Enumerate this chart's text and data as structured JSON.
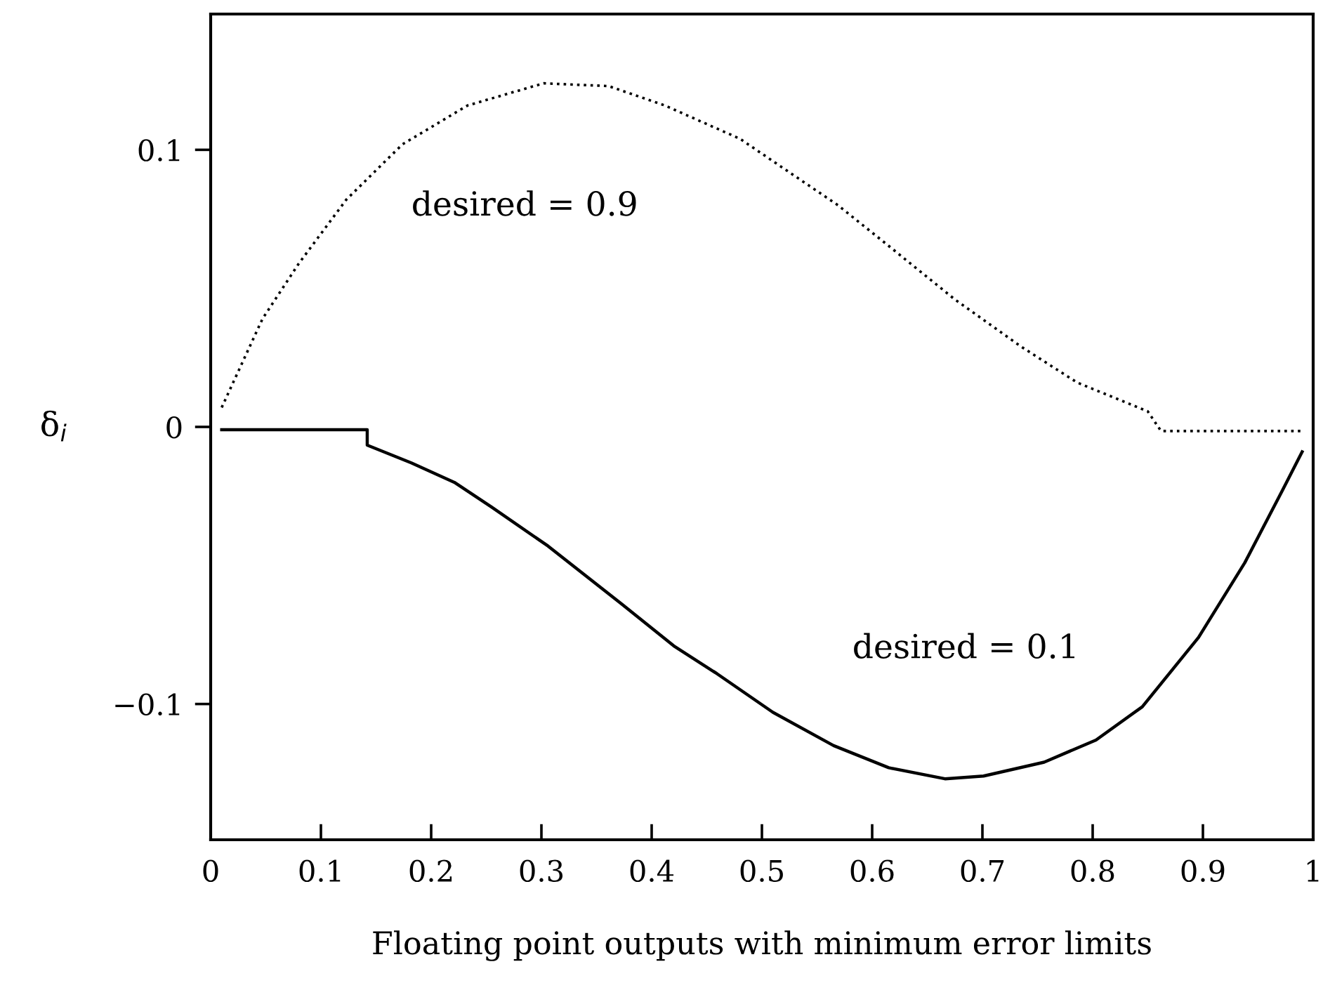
{
  "chart_data": {
    "type": "line",
    "xlabel": "Floating point outputs with minimum error limits",
    "ylabel": "δ$_{i}$",
    "xlim": [
      0,
      1
    ],
    "ylim": [
      -0.149,
      0.149
    ],
    "xticks": [
      0,
      0.1,
      0.2,
      0.3,
      0.4,
      0.5,
      0.6,
      0.7,
      0.8,
      0.9,
      1
    ],
    "yticks": [
      {
        "value": -0.1,
        "label": "−0.1"
      },
      0,
      0.1
    ],
    "marker": "none",
    "series": [
      {
        "color": "#000000",
        "line_style": "dotted",
        "x": [
          0.01,
          0.025,
          0.047,
          0.08,
          0.123,
          0.174,
          0.233,
          0.302,
          0.361,
          0.412,
          0.48,
          0.569,
          0.616,
          0.675,
          0.735,
          0.786,
          0.85,
          0.862,
          0.99
        ],
        "values": [
          0.007,
          0.02,
          0.039,
          0.059,
          0.082,
          0.102,
          0.116,
          0.124,
          0.123,
          0.116,
          0.104,
          0.08,
          0.065,
          0.046,
          0.029,
          0.016,
          0.0056,
          -0.0015,
          -0.0015
        ]
      },
      {
        "color": "#000000",
        "line_style": "solid",
        "x": [
          0.01,
          0.142,
          0.142,
          0.182,
          0.221,
          0.255,
          0.306,
          0.373,
          0.42,
          0.459,
          0.51,
          0.565,
          0.615,
          0.666,
          0.701,
          0.756,
          0.803,
          0.845,
          0.896,
          0.938,
          0.972,
          0.99
        ],
        "values": [
          -0.001,
          -0.001,
          -0.0066,
          -0.013,
          -0.02,
          -0.029,
          -0.043,
          -0.064,
          -0.079,
          -0.089,
          -0.103,
          -0.115,
          -0.123,
          -0.127,
          -0.126,
          -0.121,
          -0.113,
          -0.101,
          -0.076,
          -0.049,
          -0.023,
          -0.009
        ]
      }
    ],
    "annotations": [
      "desired = 0.9",
      "desired = 0.1"
    ]
  }
}
